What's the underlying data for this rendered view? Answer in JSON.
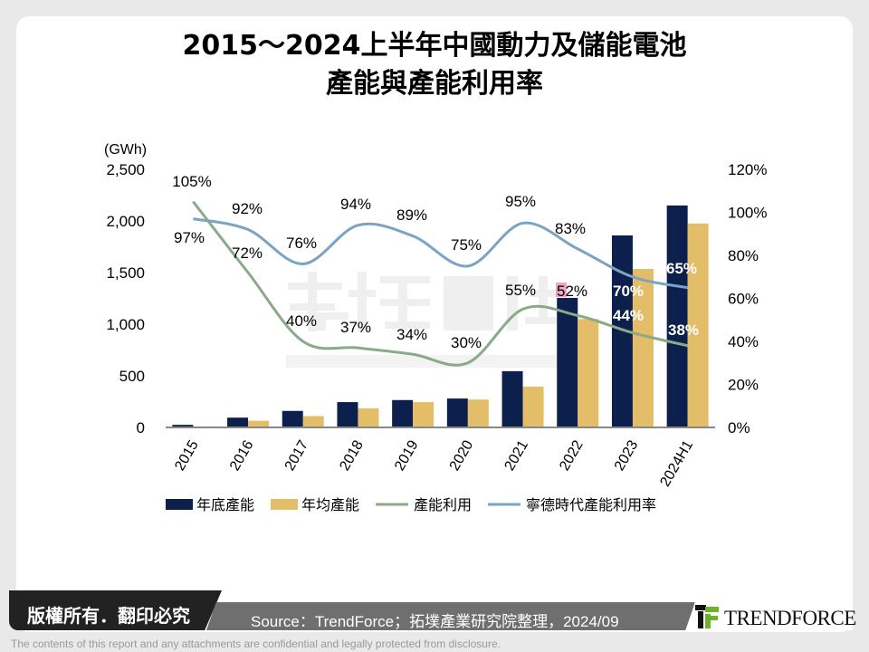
{
  "title_line1": "2015～2024上半年中國動力及儲能電池",
  "title_line2": "產能與產能利用率",
  "watermark": {
    "cn": "拓墣產研",
    "en": "TOPOLOGY RESEARCH INSTITUTE"
  },
  "chart_data": {
    "type": "bar+line",
    "categories": [
      "2015",
      "2016",
      "2017",
      "2018",
      "2019",
      "2020",
      "2021",
      "2022",
      "2023",
      "2024H1"
    ],
    "y_unit_label": "(GWh)",
    "ylim": [
      0,
      2500
    ],
    "y_ticks": [
      "0",
      "500",
      "1,000",
      "1,500",
      "2,000",
      "2,500"
    ],
    "y2lim": [
      0,
      120
    ],
    "y2_ticks": [
      "0%",
      "20%",
      "40%",
      "60%",
      "80%",
      "100%",
      "120%"
    ],
    "legend_position": "bottom",
    "grid": false,
    "series": [
      {
        "name": "年底產能",
        "kind": "bar",
        "color": "#0c1f4d",
        "values": [
          25,
          95,
          160,
          245,
          265,
          280,
          545,
          1255,
          1860,
          2150
        ]
      },
      {
        "name": "年均產能",
        "kind": "bar",
        "color": "#e3bd68",
        "values": [
          10,
          65,
          110,
          185,
          245,
          270,
          395,
          1050,
          1535,
          1975
        ]
      },
      {
        "name": "產能利用",
        "kind": "line",
        "axis": "right",
        "color": "#8aab88",
        "values": [
          105,
          72,
          40,
          37,
          34,
          30,
          55,
          52,
          44,
          38
        ],
        "labels": [
          "105%",
          "72%",
          "40%",
          "37%",
          "34%",
          "30%",
          "55%",
          "52%",
          "44%",
          "38%"
        ]
      },
      {
        "name": "寧德時代產能利用率",
        "kind": "line",
        "axis": "right",
        "color": "#7ba3c2",
        "values": [
          97,
          92,
          76,
          94,
          89,
          75,
          95,
          83,
          70,
          65
        ],
        "labels": [
          "97%",
          "92%",
          "76%",
          "94%",
          "89%",
          "75%",
          "95%",
          "83%",
          "70%",
          "65%"
        ]
      }
    ]
  },
  "footer": {
    "copyright": "版權所有．翻印必究",
    "source": "Source：TrendForce；拓墣產業研究院整理，2024/09",
    "brand": "TrendForce",
    "disclaimer": "The contents of this report and any attachments are confidential and legally protected from disclosure."
  }
}
